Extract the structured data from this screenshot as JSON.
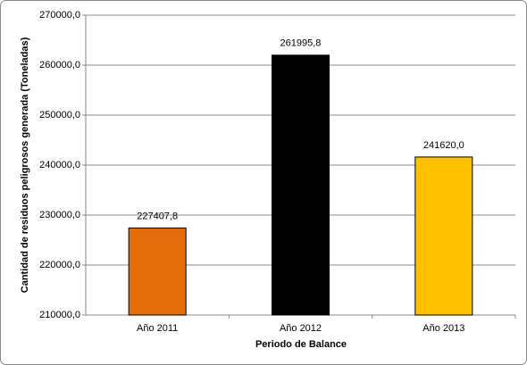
{
  "chart_data": {
    "type": "bar",
    "x_label": "Periodo de Balance",
    "y_label": "Cantidad de residuos peligrosos generada (Toneladas)",
    "categories": [
      "Año 2011",
      "Año 2012",
      "Año 2013"
    ],
    "values": [
      227407.8,
      261995.8,
      241620.0
    ],
    "value_labels": [
      "227407,8",
      "261995,8",
      "241620,0"
    ],
    "colors": [
      "#e46c0a",
      "#000000",
      "#ffc000"
    ],
    "ylim": [
      210000,
      270000
    ],
    "yticks": [
      {
        "value": 210000,
        "label": "210000,0"
      },
      {
        "value": 220000,
        "label": "220000,0"
      },
      {
        "value": 230000,
        "label": "230000,0"
      },
      {
        "value": 240000,
        "label": "240000,0"
      },
      {
        "value": 250000,
        "label": "250000,0"
      },
      {
        "value": 260000,
        "label": "260000,0"
      },
      {
        "value": 270000,
        "label": "270000,0"
      }
    ],
    "grid": true
  }
}
